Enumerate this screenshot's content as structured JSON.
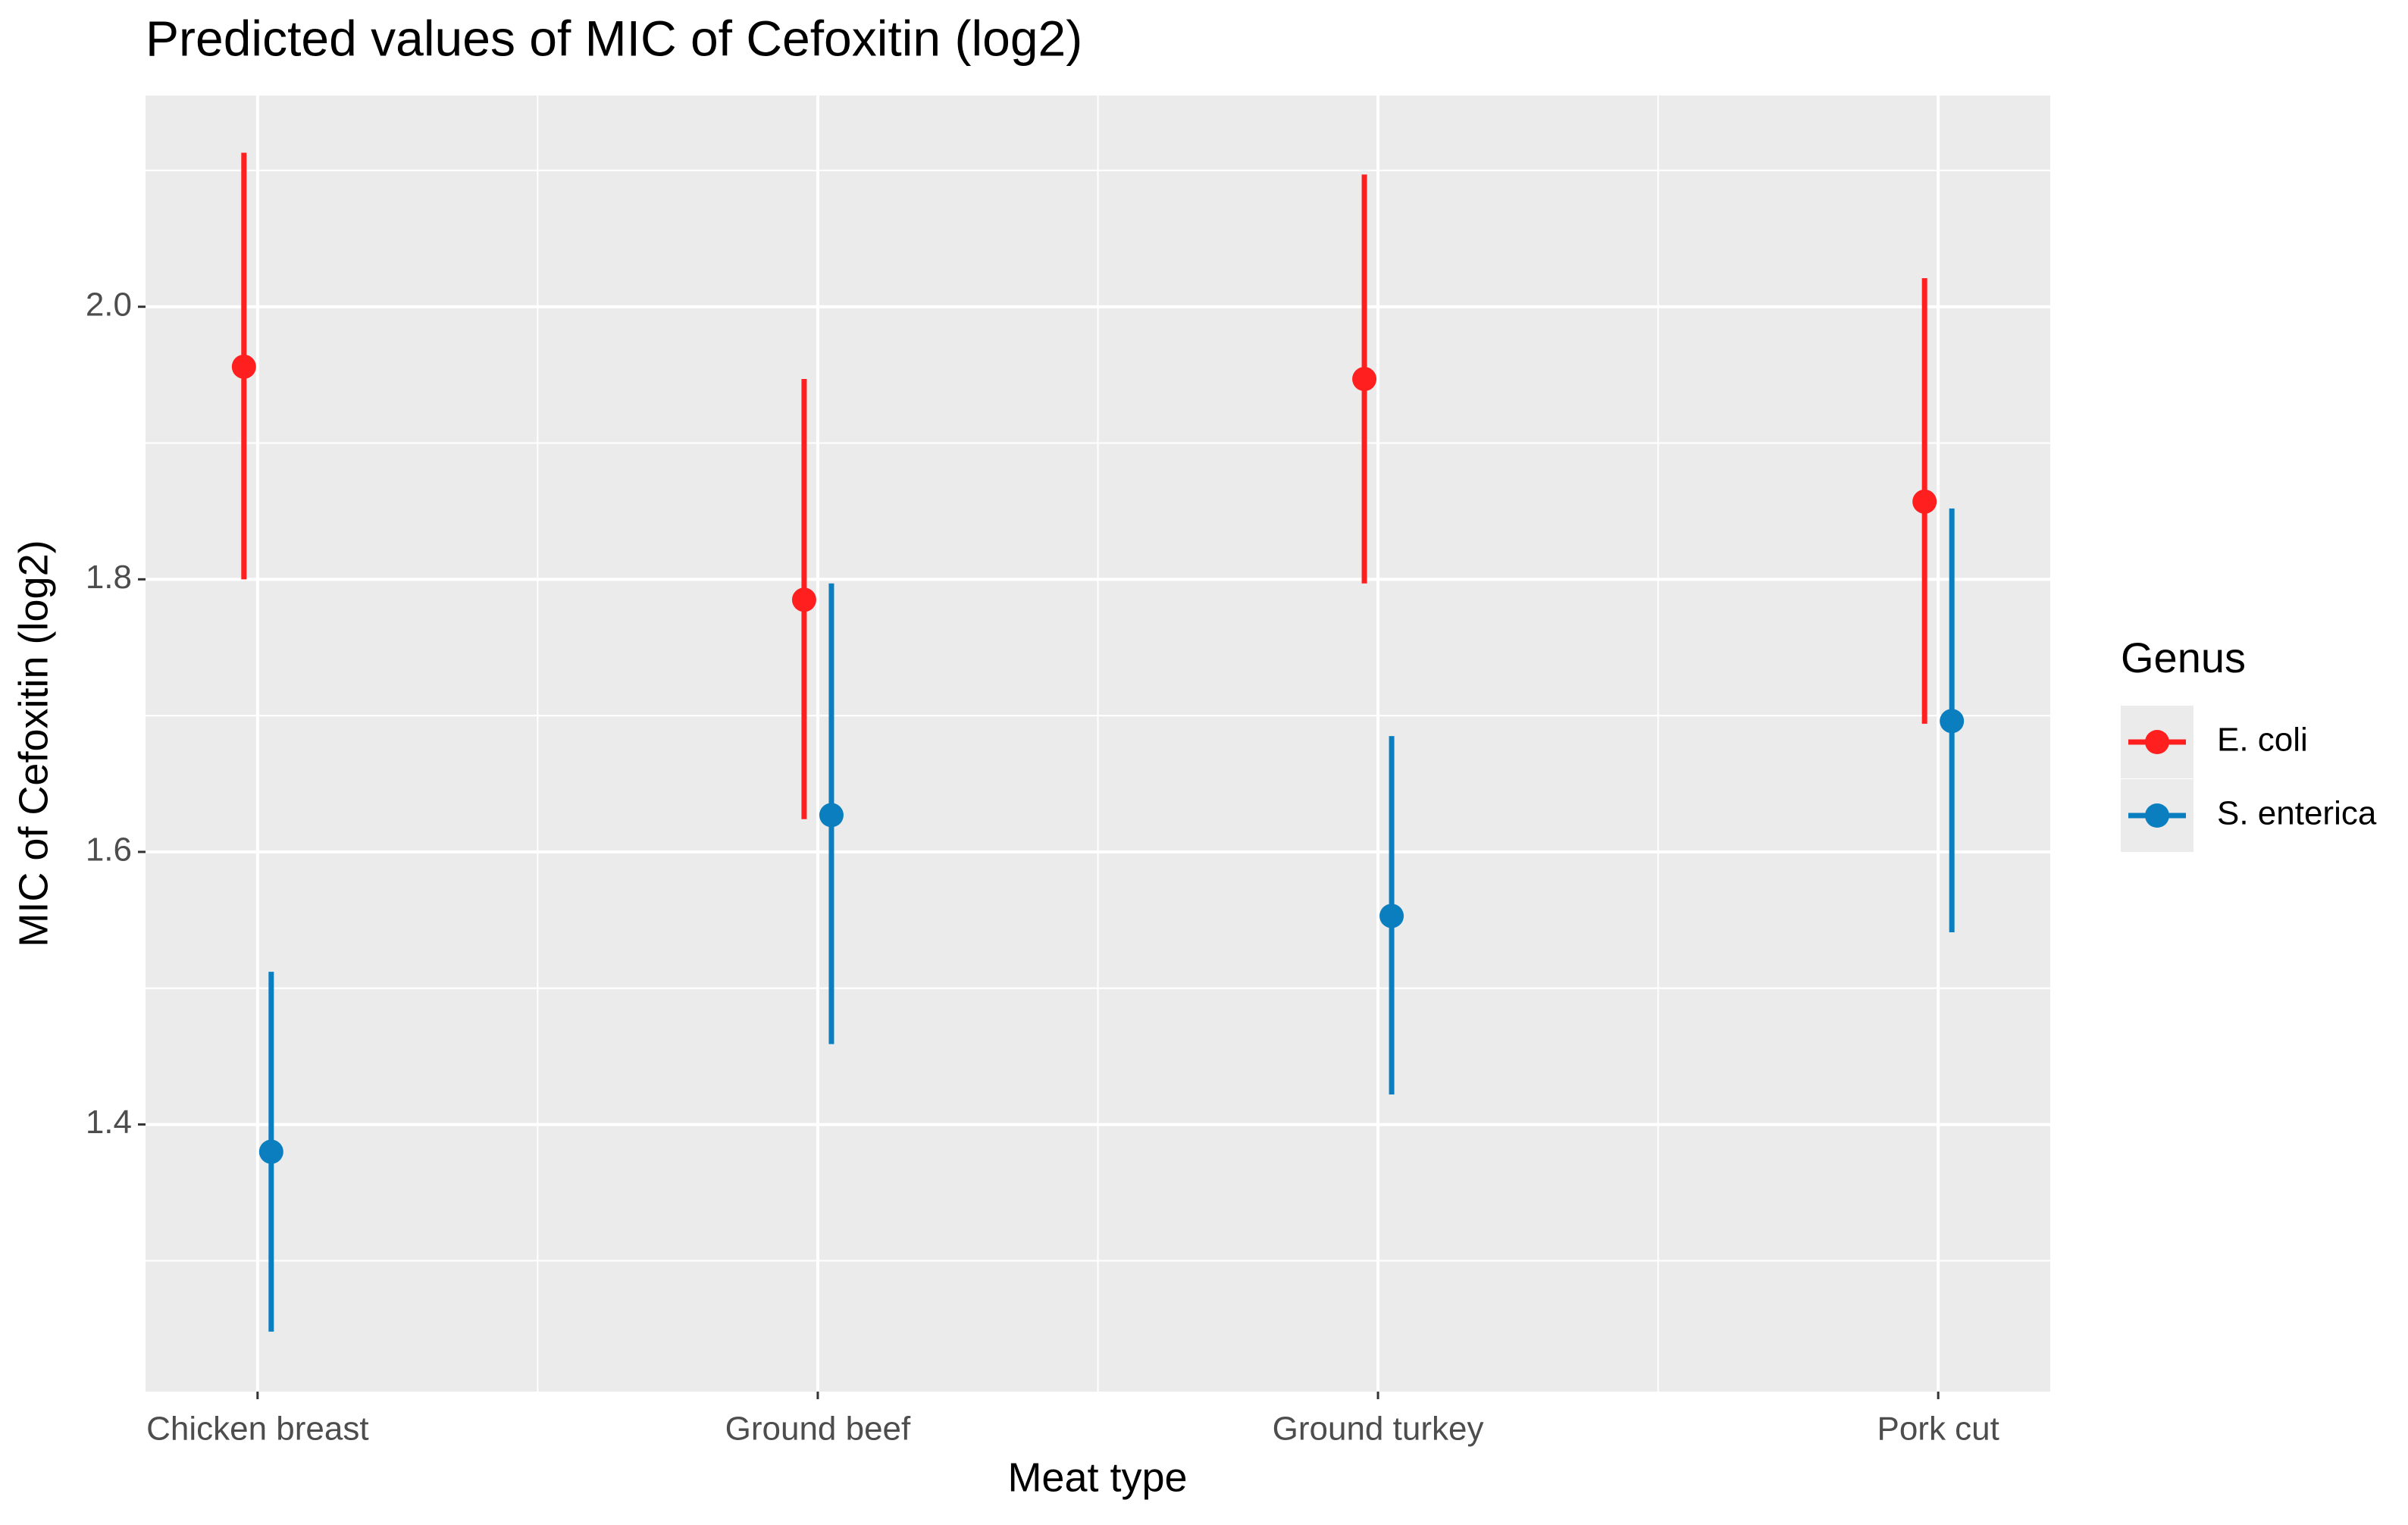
{
  "chart_data": {
    "type": "pointrange",
    "title": "Predicted values of MIC of Cefoxitin (log2)",
    "x_label": "Meat type",
    "y_label": "MIC of Cefoxitin (log2)",
    "categories": [
      "Chicken breast",
      "Ground beef",
      "Ground turkey",
      "Pork cut"
    ],
    "legend_title": "Genus",
    "legend_position": "right",
    "grid": true,
    "ylim": [
      1.204,
      2.155
    ],
    "yticks": [
      {
        "value": 1.4,
        "label": "1.4"
      },
      {
        "value": 1.6,
        "label": "1.6"
      },
      {
        "value": 1.8,
        "label": "1.8"
      },
      {
        "value": 2,
        "label": "2.0"
      }
    ],
    "series": [
      {
        "name": "E. coli",
        "color": "#ff1f1f",
        "values": [
          1.956,
          1.785,
          1.947,
          1.857
        ],
        "lower": [
          1.8,
          1.624,
          1.797,
          1.694
        ],
        "upper": [
          2.113,
          1.947,
          2.097,
          2.021
        ]
      },
      {
        "name": "S. enterica",
        "color": "#0a7ebf",
        "values": [
          1.38,
          1.627,
          1.553,
          1.696
        ],
        "lower": [
          1.248,
          1.459,
          1.422,
          1.541
        ],
        "upper": [
          1.512,
          1.797,
          1.685,
          1.852
        ]
      }
    ]
  }
}
